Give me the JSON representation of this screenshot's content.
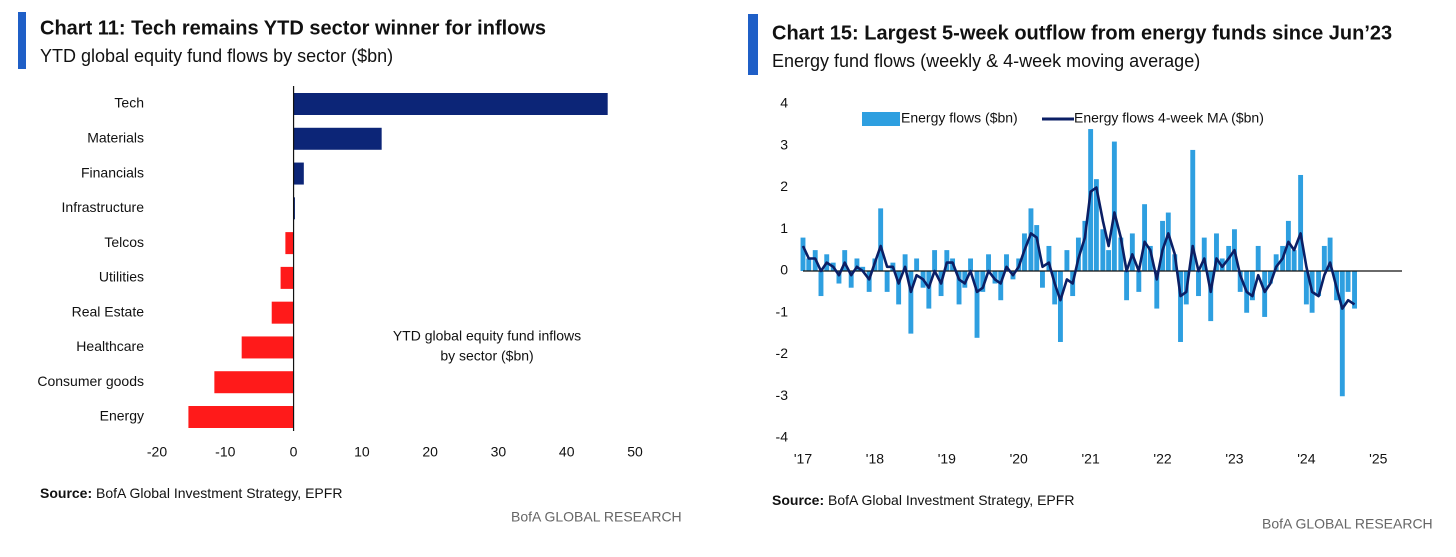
{
  "chart_data": [
    {
      "type": "bar",
      "orientation": "horizontal",
      "title": "Chart 11: Tech remains YTD sector winner for inflows",
      "subtitle": "YTD global equity fund flows by sector ($bn)",
      "categories": [
        "Tech",
        "Materials",
        "Financials",
        "Infrastructure",
        "Telcos",
        "Utilities",
        "Real Estate",
        "Healthcare",
        "Consumer goods",
        "Energy"
      ],
      "values": [
        46,
        12.9,
        1.5,
        0.2,
        -1.2,
        -1.9,
        -3.2,
        -7.6,
        -11.6,
        -15.4
      ],
      "positive_color": "#0c2577",
      "negative_color": "#ff1a1a",
      "xlim": [
        -20,
        50
      ],
      "xticks": [
        -20,
        -10,
        0,
        10,
        20,
        30,
        40,
        50
      ],
      "annotation": [
        "YTD global equity fund inflows",
        "by sector ($bn)"
      ],
      "source_label": "Source:",
      "source": "BofA Global Investment Strategy, EPFR",
      "footer": "BofA GLOBAL RESEARCH"
    },
    {
      "type": "combo",
      "title": "Chart 15: Largest 5-week outflow from energy funds since Jun’23",
      "subtitle": "Energy fund flows (weekly & 4-week moving average)",
      "x": [
        2017.0,
        2017.08,
        2017.17,
        2017.25,
        2017.33,
        2017.42,
        2017.5,
        2017.58,
        2017.67,
        2017.75,
        2017.83,
        2017.92,
        2018.0,
        2018.08,
        2018.17,
        2018.25,
        2018.33,
        2018.42,
        2018.5,
        2018.58,
        2018.67,
        2018.75,
        2018.83,
        2018.92,
        2019.0,
        2019.08,
        2019.17,
        2019.25,
        2019.33,
        2019.42,
        2019.5,
        2019.58,
        2019.67,
        2019.75,
        2019.83,
        2019.92,
        2020.0,
        2020.08,
        2020.17,
        2020.25,
        2020.33,
        2020.42,
        2020.5,
        2020.58,
        2020.67,
        2020.75,
        2020.83,
        2020.92,
        2021.0,
        2021.08,
        2021.17,
        2021.25,
        2021.33,
        2021.42,
        2021.5,
        2021.58,
        2021.67,
        2021.75,
        2021.83,
        2021.92,
        2022.0,
        2022.08,
        2022.17,
        2022.25,
        2022.33,
        2022.42,
        2022.5,
        2022.58,
        2022.67,
        2022.75,
        2022.83,
        2022.92,
        2023.0,
        2023.08,
        2023.17,
        2023.25,
        2023.33,
        2023.42,
        2023.5,
        2023.58,
        2023.67,
        2023.75,
        2023.83,
        2023.92,
        2024.0,
        2024.08,
        2024.17,
        2024.25,
        2024.33,
        2024.42,
        2024.5,
        2024.58,
        2024.67
      ],
      "series": [
        {
          "name": "Energy flows ($bn)",
          "type": "bar",
          "color": "#2e9fe0",
          "values": [
            0.8,
            0.3,
            0.5,
            -0.6,
            0.4,
            0.2,
            -0.3,
            0.5,
            -0.4,
            0.3,
            0.1,
            -0.5,
            0.3,
            1.5,
            -0.5,
            0.2,
            -0.8,
            0.4,
            -1.5,
            0.3,
            -0.4,
            -0.9,
            0.5,
            -0.6,
            0.5,
            0.3,
            -0.8,
            -0.4,
            0.3,
            -1.6,
            -0.5,
            0.4,
            -0.3,
            -0.7,
            0.4,
            -0.2,
            0.3,
            0.9,
            1.5,
            1.1,
            -0.4,
            0.6,
            -0.8,
            -1.7,
            0.5,
            -0.6,
            0.8,
            1.2,
            3.4,
            2.2,
            1.0,
            0.5,
            3.1,
            0.8,
            -0.7,
            0.9,
            -0.5,
            1.6,
            0.6,
            -0.9,
            1.2,
            1.4,
            0.4,
            -1.7,
            -0.8,
            2.9,
            -0.6,
            0.8,
            -1.2,
            0.9,
            0.3,
            0.6,
            1.0,
            -0.5,
            -1.0,
            -0.7,
            0.6,
            -1.1,
            -0.3,
            0.4,
            0.6,
            1.2,
            0.5,
            2.3,
            -0.8,
            -1.0,
            -0.6,
            0.6,
            0.8,
            -0.7,
            -3.0,
            -0.5,
            -0.9
          ]
        },
        {
          "name": "Energy flows 4-week MA ($bn)",
          "type": "line",
          "color": "#0b1f65",
          "values": [
            0.6,
            0.3,
            0.3,
            0.0,
            0.2,
            0.1,
            -0.1,
            0.2,
            -0.1,
            0.1,
            0.0,
            -0.2,
            0.2,
            0.6,
            0.1,
            0.1,
            -0.3,
            0.1,
            -0.5,
            -0.1,
            -0.2,
            -0.4,
            0.0,
            -0.3,
            0.2,
            0.2,
            -0.2,
            -0.3,
            0.0,
            -0.5,
            -0.4,
            0.0,
            -0.2,
            -0.3,
            0.1,
            -0.1,
            0.1,
            0.5,
            0.9,
            0.8,
            0.1,
            0.2,
            -0.3,
            -0.7,
            -0.2,
            -0.3,
            0.3,
            0.8,
            1.9,
            2.0,
            1.2,
            0.6,
            1.4,
            0.8,
            0.0,
            0.4,
            0.0,
            0.7,
            0.5,
            -0.2,
            0.5,
            0.9,
            0.4,
            -0.6,
            -0.5,
            0.6,
            0.0,
            0.3,
            -0.5,
            0.3,
            0.1,
            0.3,
            0.5,
            -0.1,
            -0.5,
            -0.6,
            -0.1,
            -0.5,
            -0.3,
            0.1,
            0.3,
            0.7,
            0.5,
            0.9,
            0.1,
            -0.5,
            -0.6,
            -0.1,
            0.2,
            -0.4,
            -0.9,
            -0.7,
            -0.8
          ]
        }
      ],
      "xlim": [
        2017,
        2025.33
      ],
      "xticks": [
        {
          "value": 2017,
          "label": "'17"
        },
        {
          "value": 2018,
          "label": "'18"
        },
        {
          "value": 2019,
          "label": "'19"
        },
        {
          "value": 2020,
          "label": "'20"
        },
        {
          "value": 2021,
          "label": "'21"
        },
        {
          "value": 2022,
          "label": "'22"
        },
        {
          "value": 2023,
          "label": "'23"
        },
        {
          "value": 2024,
          "label": "'24"
        },
        {
          "value": 2025,
          "label": "'25"
        }
      ],
      "ylim": [
        -4,
        4
      ],
      "yticks": [
        -4,
        -3,
        -2,
        -1,
        0,
        1,
        2,
        3,
        4
      ],
      "legend": "top",
      "source_label": "Source:",
      "source": "BofA Global Investment Strategy, EPFR",
      "footer": "BofA GLOBAL RESEARCH"
    }
  ]
}
